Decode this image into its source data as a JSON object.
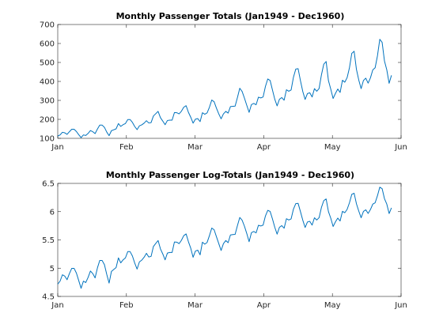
{
  "chart_data": [
    {
      "type": "line",
      "title": "Monthly Passenger Totals (Jan1949 - Dec1960)",
      "xlabel": "",
      "ylabel": "",
      "xlim": [
        0,
        5
      ],
      "ylim": [
        100,
        700
      ],
      "xticks": [
        0,
        1,
        2,
        3,
        4,
        5
      ],
      "xticklabels": [
        "Jan",
        "Feb",
        "Mar",
        "Apr",
        "May",
        "Jun"
      ],
      "yticks": [
        100,
        200,
        300,
        400,
        500,
        600,
        700
      ],
      "yticklabels": [
        "100",
        "200",
        "300",
        "400",
        "500",
        "600",
        "700"
      ],
      "grid": false,
      "color": "#0072bd",
      "values": [
        112,
        118,
        132,
        129,
        121,
        135,
        148,
        148,
        136,
        119,
        104,
        118,
        115,
        126,
        141,
        135,
        125,
        149,
        170,
        170,
        158,
        133,
        114,
        140,
        145,
        150,
        178,
        163,
        172,
        178,
        199,
        199,
        184,
        162,
        146,
        166,
        171,
        180,
        193,
        181,
        183,
        218,
        230,
        242,
        209,
        191,
        172,
        194,
        196,
        196,
        236,
        235,
        229,
        243,
        264,
        272,
        237,
        211,
        180,
        201,
        204,
        188,
        235,
        227,
        234,
        264,
        302,
        293,
        259,
        229,
        203,
        229,
        242,
        233,
        267,
        269,
        270,
        315,
        364,
        347,
        312,
        274,
        237,
        278,
        284,
        277,
        317,
        313,
        318,
        374,
        413,
        405,
        355,
        306,
        271,
        306,
        315,
        301,
        356,
        348,
        355,
        422,
        465,
        467,
        404,
        347,
        305,
        336,
        340,
        318,
        362,
        348,
        363,
        435,
        491,
        505,
        404,
        359,
        310,
        337,
        360,
        342,
        406,
        396,
        420,
        472,
        548,
        559,
        463,
        407,
        362,
        405,
        417,
        391,
        419,
        461,
        472,
        535,
        622,
        606,
        508,
        461,
        390,
        432
      ]
    },
    {
      "type": "line",
      "title": "Monthly Passenger Log-Totals (Jan1949 - Dec1960)",
      "xlabel": "",
      "ylabel": "",
      "xlim": [
        0,
        5
      ],
      "ylim": [
        4.5,
        6.5
      ],
      "xticks": [
        0,
        1,
        2,
        3,
        4,
        5
      ],
      "xticklabels": [
        "Jan",
        "Feb",
        "Mar",
        "Apr",
        "May",
        "Jun"
      ],
      "yticks": [
        4.5,
        5,
        5.5,
        6,
        6.5
      ],
      "yticklabels": [
        "4.5",
        "5",
        "5.5",
        "6",
        "6.5"
      ],
      "grid": false,
      "color": "#0072bd",
      "values": [
        4.718,
        4.771,
        4.883,
        4.86,
        4.796,
        4.905,
        4.997,
        4.997,
        4.913,
        4.779,
        4.644,
        4.771,
        4.745,
        4.836,
        4.949,
        4.905,
        4.828,
        5.004,
        5.136,
        5.136,
        5.063,
        4.89,
        4.736,
        4.942,
        4.977,
        5.011,
        5.182,
        5.094,
        5.147,
        5.182,
        5.293,
        5.293,
        5.215,
        5.088,
        4.984,
        5.112,
        5.142,
        5.193,
        5.263,
        5.198,
        5.209,
        5.384,
        5.438,
        5.489,
        5.342,
        5.252,
        5.147,
        5.268,
        5.278,
        5.278,
        5.464,
        5.46,
        5.434,
        5.493,
        5.576,
        5.606,
        5.468,
        5.352,
        5.193,
        5.303,
        5.318,
        5.236,
        5.46,
        5.425,
        5.455,
        5.576,
        5.71,
        5.68,
        5.557,
        5.434,
        5.313,
        5.434,
        5.489,
        5.451,
        5.587,
        5.595,
        5.598,
        5.753,
        5.897,
        5.849,
        5.743,
        5.613,
        5.468,
        5.628,
        5.649,
        5.624,
        5.759,
        5.746,
        5.762,
        5.924,
        6.023,
        6.004,
        5.872,
        5.724,
        5.602,
        5.724,
        5.753,
        5.707,
        5.875,
        5.852,
        5.872,
        6.045,
        6.142,
        6.146,
        6.001,
        5.849,
        5.72,
        5.817,
        5.829,
        5.762,
        5.892,
        5.852,
        5.894,
        6.075,
        6.196,
        6.225,
        6.001,
        5.883,
        5.737,
        5.82,
        5.886,
        5.835,
        6.006,
        5.981,
        6.04,
        6.157,
        6.306,
        6.326,
        6.138,
        6.009,
        5.892,
        6.004,
        6.033,
        5.969,
        6.038,
        6.133,
        6.157,
        6.282,
        6.433,
        6.407,
        6.23,
        6.133,
        5.966,
        6.068
      ]
    }
  ]
}
